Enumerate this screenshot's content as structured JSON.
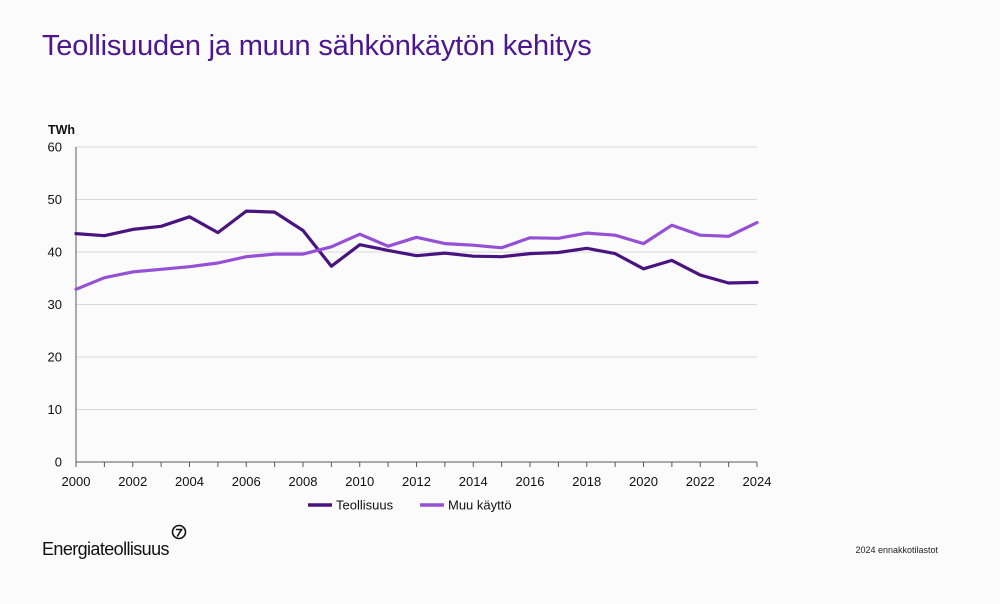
{
  "slide": {
    "title": "Teollisuuden ja muun sähkönkäytön kehitys",
    "logo_text": "Energiateollisuus",
    "footnote": "2024 ennakkotilastot"
  },
  "colors": {
    "title": "#4b1690",
    "teollisuus": "#4a1480",
    "muu_kaytto": "#9650d6",
    "grid": "#d9d9d9",
    "axis": "#595959"
  },
  "chart_data": {
    "type": "line",
    "title": "Teollisuuden ja muun sähkönkäytön kehitys",
    "unit_label": "TWh",
    "xlabel": "",
    "ylabel": "TWh",
    "ylim": [
      0,
      60
    ],
    "yticks": [
      0,
      10,
      20,
      30,
      40,
      50,
      60
    ],
    "xlim": [
      2000,
      2024
    ],
    "xticks": [
      2000,
      2002,
      2004,
      2006,
      2008,
      2010,
      2012,
      2014,
      2016,
      2018,
      2020,
      2022,
      2024
    ],
    "grid": true,
    "legend_position": "bottom",
    "x": [
      2000,
      2001,
      2002,
      2003,
      2004,
      2005,
      2006,
      2007,
      2008,
      2009,
      2010,
      2011,
      2012,
      2013,
      2014,
      2015,
      2016,
      2017,
      2018,
      2019,
      2020,
      2021,
      2022,
      2023,
      2024
    ],
    "series": [
      {
        "name": "Teollisuus",
        "color": "#4a1480",
        "values": [
          43.5,
          43.1,
          44.3,
          44.9,
          46.7,
          43.7,
          47.8,
          47.6,
          44.1,
          37.3,
          41.4,
          40.3,
          39.3,
          39.8,
          39.2,
          39.1,
          39.7,
          39.9,
          40.7,
          39.7,
          36.8,
          38.4,
          35.6,
          34.1,
          34.2
        ]
      },
      {
        "name": "Muu käyttö",
        "color": "#9650d6",
        "values": [
          32.9,
          35.1,
          36.2,
          36.7,
          37.2,
          37.9,
          39.1,
          39.6,
          39.6,
          41.0,
          43.4,
          41.1,
          42.8,
          41.6,
          41.3,
          40.8,
          42.7,
          42.6,
          43.6,
          43.2,
          41.6,
          45.1,
          43.2,
          43.0,
          45.6
        ]
      }
    ]
  }
}
